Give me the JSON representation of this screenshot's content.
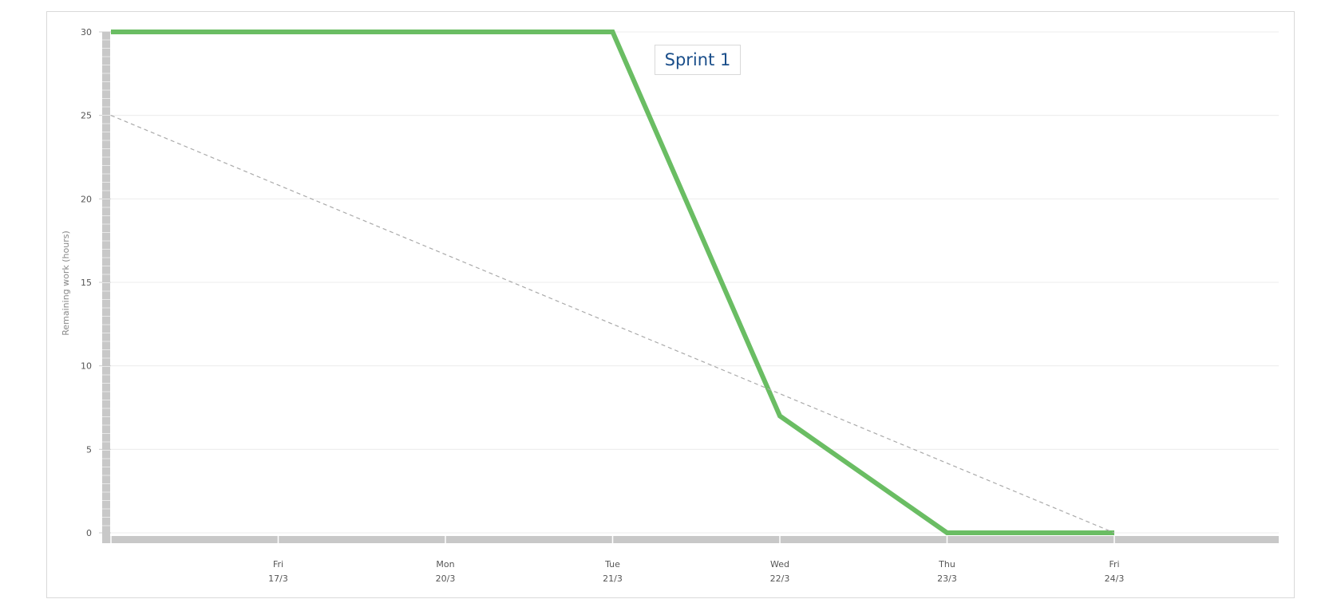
{
  "chart_data": {
    "type": "line",
    "title": "",
    "annotation": "Sprint 1",
    "xlabel": "",
    "ylabel": "Remaining work (hours)",
    "ylim": [
      0,
      30
    ],
    "yticks": [
      "0",
      "5",
      "10",
      "15",
      "20",
      "25",
      "30"
    ],
    "grid": true,
    "categories": [
      {
        "day": "",
        "date": ""
      },
      {
        "day": "Fri",
        "date": "17/3"
      },
      {
        "day": "Mon",
        "date": "20/3"
      },
      {
        "day": "Tue",
        "date": "21/3"
      },
      {
        "day": "Wed",
        "date": "22/3"
      },
      {
        "day": "Thu",
        "date": "23/3"
      },
      {
        "day": "Fri",
        "date": "24/3"
      }
    ],
    "series": [
      {
        "role": "actual",
        "color": "#6abd63",
        "values": [
          30,
          30,
          30,
          30,
          7,
          0,
          0
        ]
      },
      {
        "role": "ideal",
        "color": "#aaaaaa",
        "dashed": true,
        "values": [
          25,
          20.83,
          16.67,
          12.5,
          8.33,
          4.17,
          0
        ]
      }
    ]
  }
}
